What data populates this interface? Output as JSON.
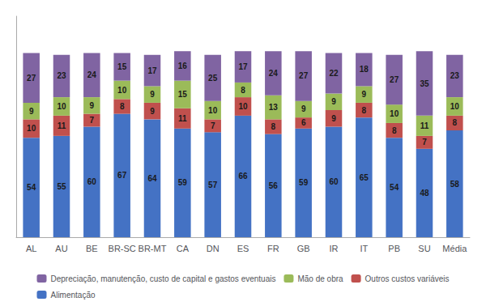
{
  "chart_data": {
    "type": "bar",
    "stacked": true,
    "categories": [
      "AL",
      "AU",
      "BE",
      "BR-SC",
      "BR-MT",
      "CA",
      "DN",
      "ES",
      "FR",
      "GB",
      "IR",
      "IT",
      "PB",
      "SU",
      "Média"
    ],
    "series": [
      {
        "name": "Alimentação",
        "color": "#4472C4",
        "values": [
          54,
          55,
          60,
          67,
          64,
          59,
          57,
          66,
          56,
          59,
          60,
          65,
          54,
          48,
          58
        ]
      },
      {
        "name": "Outros custos variáveis",
        "color": "#C0504D",
        "values": [
          10,
          11,
          7,
          8,
          9,
          11,
          7,
          10,
          8,
          6,
          9,
          8,
          8,
          7,
          8
        ]
      },
      {
        "name": "Mão de obra",
        "color": "#9BBB59",
        "values": [
          9,
          10,
          9,
          10,
          9,
          15,
          10,
          8,
          13,
          9,
          9,
          9,
          10,
          11,
          10
        ]
      },
      {
        "name": "Depreciação, manutenção, custo de capital e gastos eventuais",
        "color": "#8064A2",
        "values": [
          27,
          23,
          24,
          15,
          17,
          16,
          25,
          17,
          24,
          27,
          22,
          18,
          27,
          35,
          23
        ]
      }
    ],
    "ylim": [
      0,
      120
    ],
    "data_labels": true,
    "tick_labels": "x",
    "grid": false,
    "legend": "bottom"
  }
}
